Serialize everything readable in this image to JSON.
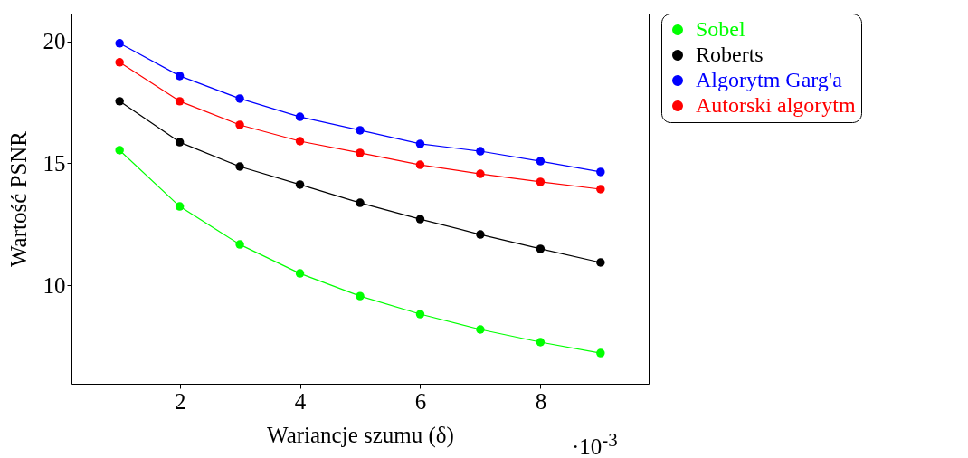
{
  "chart_data": {
    "type": "line",
    "xlabel": "Wariancje szumu (δ)",
    "ylabel": "Wartość PSNR",
    "annotations": [
      "·10$^{-3}$"
    ],
    "x": [
      1,
      2,
      3,
      4,
      5,
      6,
      7,
      8,
      9
    ],
    "xlim": [
      0.2,
      9.8
    ],
    "xticks": [
      2,
      4,
      6,
      8
    ],
    "ylim": [
      5.95,
      21.15
    ],
    "yticks": [
      10,
      15,
      20
    ],
    "grid": false,
    "legend": "top right",
    "marker": "circle",
    "line_style": "solid",
    "series": [
      {
        "name": "Sobel",
        "color": "#00ff00",
        "values": [
          15.54,
          13.23,
          11.67,
          10.48,
          9.55,
          8.81,
          8.18,
          7.66,
          7.21
        ]
      },
      {
        "name": "Roberts",
        "color": "#000000",
        "values": [
          17.55,
          15.87,
          14.87,
          14.13,
          13.38,
          12.71,
          12.08,
          11.49,
          10.93
        ]
      },
      {
        "name": "Algorytm Garg'a",
        "color": "#0000ff",
        "values": [
          19.93,
          18.59,
          17.66,
          16.91,
          16.36,
          15.8,
          15.5,
          15.09,
          14.65
        ]
      },
      {
        "name": "Autorski algorytm",
        "color": "#ff0000",
        "values": [
          19.15,
          17.55,
          16.58,
          15.91,
          15.43,
          14.94,
          14.57,
          14.24,
          13.94
        ]
      }
    ]
  }
}
